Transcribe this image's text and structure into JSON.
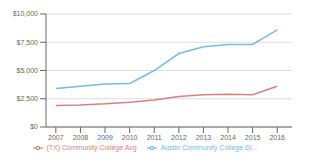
{
  "chart_data": {
    "type": "line",
    "x": [
      2007,
      2008,
      2009,
      2010,
      2011,
      2012,
      2013,
      2014,
      2015,
      2016
    ],
    "xlim": [
      2006.6,
      2016.6
    ],
    "xticks": [
      2007,
      2008,
      2009,
      2010,
      2011,
      2012,
      2013,
      2014,
      2015,
      2016
    ],
    "ylim": [
      0,
      10000
    ],
    "yticks": [
      {
        "value": 0,
        "label": "$0"
      },
      {
        "value": 2500,
        "label": "$2,500"
      },
      {
        "value": 5000,
        "label": "$5,000"
      },
      {
        "value": 7500,
        "label": "$7,500"
      },
      {
        "value": 10000,
        "label": "$10,000"
      }
    ],
    "series": [
      {
        "name": "Austin Community College Di...",
        "color": "#7BB8E8",
        "values": [
          3400,
          3600,
          3800,
          3850,
          5000,
          6500,
          7100,
          7300,
          7300,
          8600
        ]
      },
      {
        "name": "(TX) Community College Avg",
        "color": "#D98080",
        "values": [
          1900,
          1950,
          2050,
          2200,
          2400,
          2700,
          2850,
          2900,
          2850,
          3600
        ]
      }
    ],
    "grid": true,
    "legend": "bottom"
  }
}
